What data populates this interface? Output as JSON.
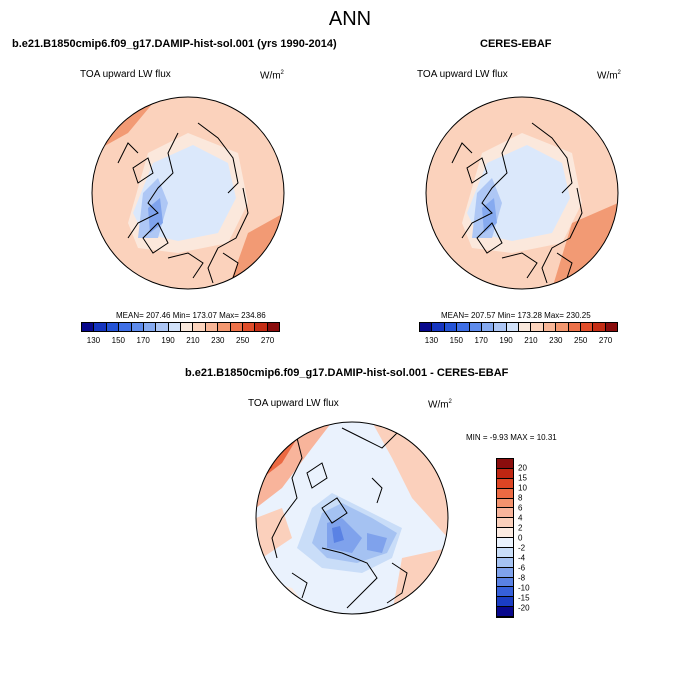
{
  "figure_title": "ANN",
  "panels": [
    {
      "title": "b.e21.B1850cmip6.f09_g17.DAMIP-hist-sol.001 (yrs 1990-2014)",
      "variable": "TOA upward LW flux",
      "units_base": "W/m",
      "units_exp": "2",
      "stats": "MEAN= 207.46  Min= 173.07  Max= 234.86"
    },
    {
      "title": "CERES-EBAF",
      "variable": "TOA upward LW flux",
      "units_base": "W/m",
      "units_exp": "2",
      "stats": "MEAN= 207.57  Min= 173.28  Max= 230.25"
    },
    {
      "title": "b.e21.B1850cmip6.f09_g17.DAMIP-hist-sol.001 - CERES-EBAF",
      "variable": "TOA upward LW flux",
      "units_base": "W/m",
      "units_exp": "2",
      "stats": "MIN =  -9.93 MAX =  10.31"
    }
  ],
  "abs_colorbar": {
    "colors": [
      "#08088c",
      "#1535c0",
      "#2453d6",
      "#3f6fe6",
      "#5e8bec",
      "#86aaf0",
      "#adc6f5",
      "#d2e2fa",
      "#f9e8dc",
      "#fbd3bc",
      "#f8b697",
      "#f3976f",
      "#ec7149",
      "#e04d2a",
      "#c42d15",
      "#8a0d0d"
    ],
    "ticks": [
      "130",
      "150",
      "170",
      "190",
      "210",
      "230",
      "250",
      "270"
    ]
  },
  "diff_colorbar": {
    "colors": [
      "#8a0d0d",
      "#bf2612",
      "#dd4524",
      "#ec6a43",
      "#f3926d",
      "#f8b49b",
      "#fbd0bc",
      "#fcebe2",
      "#eaf2fd",
      "#c9ddf8",
      "#a5c2f2",
      "#7fa2ec",
      "#5a82e4",
      "#3660da",
      "#1a3dc3",
      "#08088c"
    ],
    "ticks": [
      "20",
      "15",
      "10",
      "8",
      "6",
      "4",
      "2",
      "0",
      "-2",
      "-4",
      "-6",
      "-8",
      "-10",
      "-15",
      "-20"
    ]
  }
}
